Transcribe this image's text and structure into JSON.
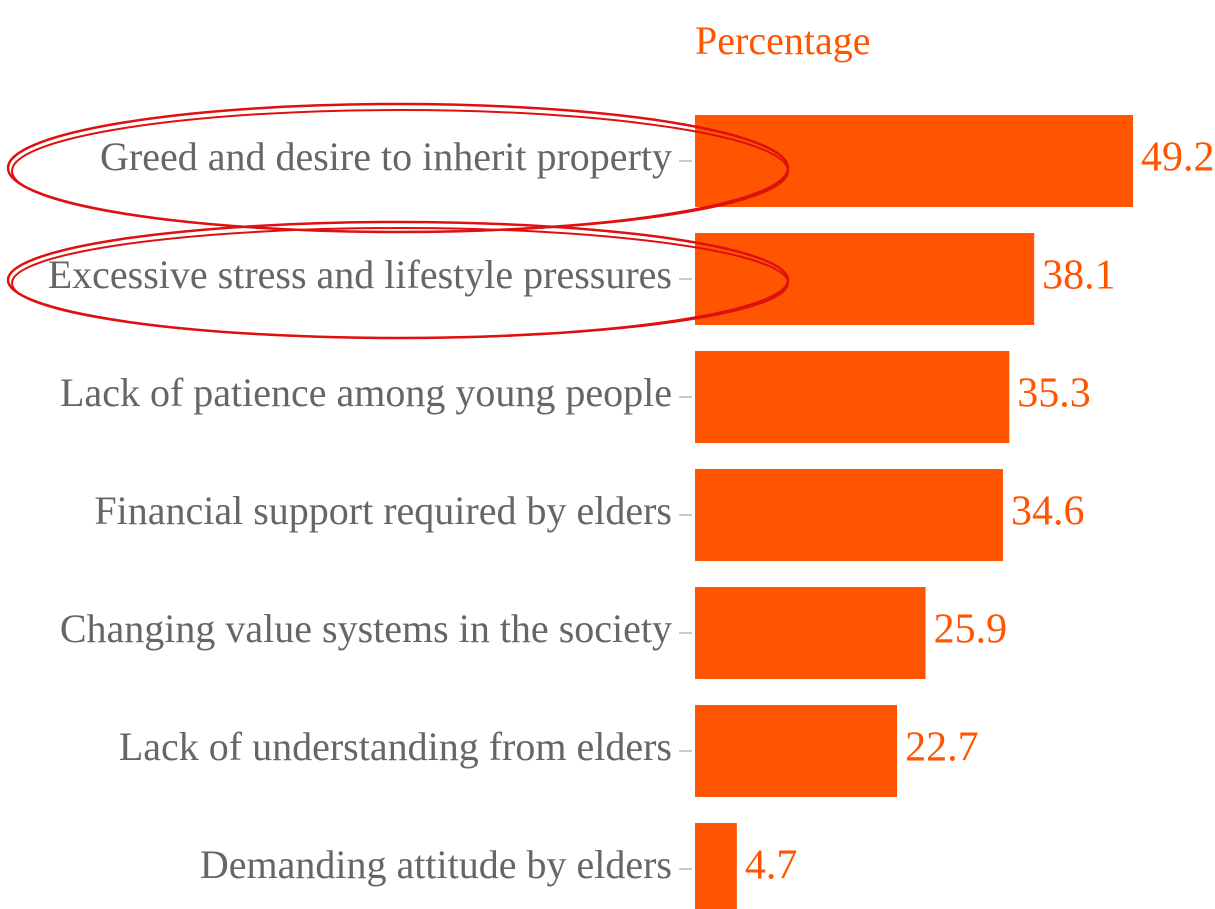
{
  "chart_data": {
    "type": "hbar",
    "title": "Percentage",
    "categories": [
      "Greed and desire to inherit property",
      "Excessive stress and lifestyle pressures",
      "Lack of patience among young people",
      "Financial support required by elders",
      "Changing value systems in the society",
      "Lack of understanding from elders",
      "Demanding attitude by elders"
    ],
    "values": [
      49.2,
      38.1,
      35.3,
      34.6,
      25.9,
      22.7,
      4.7
    ],
    "color": "#ff5500"
  }
}
